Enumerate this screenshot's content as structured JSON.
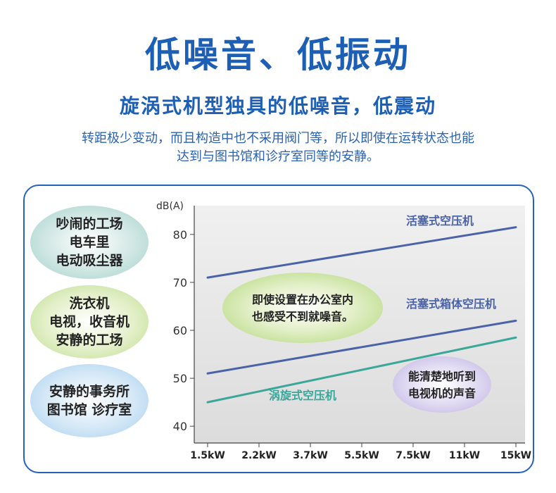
{
  "header": {
    "title": "低噪音、低振动",
    "subtitle": "旋涡式机型独具的低噪音，低震动",
    "desc_line1": "转距极少变动，而且构造中也不采用阀门等，所以即使在运转状态也能",
    "desc_line2": "达到与图书馆和诊疗室同等的安静。"
  },
  "bubbles": [
    {
      "text": "吵闹的工场\n电车里\n电动吸尘器",
      "color": "#9fd0c8"
    },
    {
      "text": "洗衣机\n电视，收音机\n安静的工场",
      "color": "#bcdc8c"
    },
    {
      "text": "安静的事务所\n图书馆 诊疗室",
      "color": "#a3cdee"
    }
  ],
  "chart_data": {
    "type": "line",
    "ylabel": "dB(A)",
    "categories": [
      "1.5kW",
      "2.2kW",
      "3.7kW",
      "5.5kW",
      "7.5kW",
      "11kW",
      "15kW"
    ],
    "yticks": [
      40,
      50,
      60,
      70,
      80
    ],
    "ylim": [
      36.5,
      86
    ],
    "grid": false,
    "series": [
      {
        "name": "活塞式空压机",
        "start": 71,
        "end": 81.5,
        "color": "#4a62a8"
      },
      {
        "name": "活塞式箱体空压机",
        "start": 51,
        "end": 62,
        "color": "#4a62a8"
      },
      {
        "name": "涡旋式空压机",
        "start": 45,
        "end": 58.5,
        "color": "#3aa79a"
      }
    ],
    "annotations": [
      {
        "text": "即使设置在办公室内\n也感受不到就噪音。",
        "color": "#bcdc8c"
      },
      {
        "text": "能清楚地听到\n电视机的声音",
        "color": "#c8bde6"
      }
    ]
  }
}
